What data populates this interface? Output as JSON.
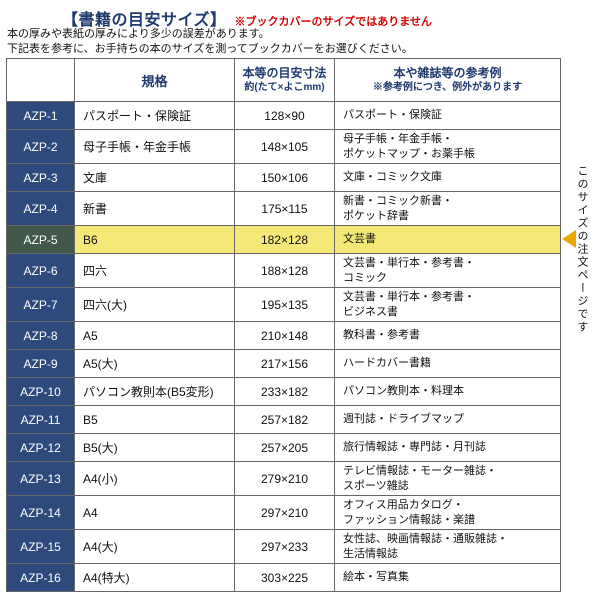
{
  "page": {
    "title": "【書籍の目安サイズ】",
    "title_warning": "※ブックカバーのサイズではありません",
    "note_line1": "本の厚みや表紙の厚みにより多少の誤差があります。",
    "note_line2": "下記表を参考に、お手持ちの本のサイズを測ってブックカバーをお選びください。"
  },
  "colors": {
    "heading_navy": "#1e3a6e",
    "code_cell_navy": "#2e4a7c",
    "selected_code_cell_green": "#41584a",
    "highlight_row_yellow": "#f4e976",
    "warning_red": "#d60000",
    "arrow_gold": "#eaa800"
  },
  "table": {
    "header": {
      "standard": "規格",
      "size_title": "本等の目安寸法",
      "size_sub": "約(たて×よこmm)",
      "examples_title": "本や雑誌等の参考例",
      "examples_sub": "※参考例につき、例外があります"
    },
    "rows": [
      {
        "code": "AZP-1",
        "standard": "パスポート・保険証",
        "size": "128×90",
        "examples": "パスポート・保険証",
        "highlight": false
      },
      {
        "code": "AZP-2",
        "standard": "母子手帳・年金手帳",
        "size": "148×105",
        "examples": "母子手帳・年金手帳・\nポケットマップ・お薬手帳",
        "highlight": false
      },
      {
        "code": "AZP-3",
        "standard": "文庫",
        "size": "150×106",
        "examples": "文庫・コミック文庫",
        "highlight": false
      },
      {
        "code": "AZP-4",
        "standard": "新書",
        "size": "175×115",
        "examples": "新書・コミック新書・\nポケット辞書",
        "highlight": false
      },
      {
        "code": "AZP-5",
        "standard": "B6",
        "size": "182×128",
        "examples": "文芸書",
        "highlight": true
      },
      {
        "code": "AZP-6",
        "standard": "四六",
        "size": "188×128",
        "examples": "文芸書・単行本・参考書・\nコミック",
        "highlight": false
      },
      {
        "code": "AZP-7",
        "standard": "四六(大)",
        "size": "195×135",
        "examples": "文芸書・単行本・参考書・\nビジネス書",
        "highlight": false
      },
      {
        "code": "AZP-8",
        "standard": "A5",
        "size": "210×148",
        "examples": "教科書・参考書",
        "highlight": false
      },
      {
        "code": "AZP-9",
        "standard": "A5(大)",
        "size": "217×156",
        "examples": "ハードカバー書籍",
        "highlight": false
      },
      {
        "code": "AZP-10",
        "standard": "パソコン教則本(B5変形)",
        "size": "233×182",
        "examples": "パソコン教則本・料理本",
        "highlight": false
      },
      {
        "code": "AZP-11",
        "standard": "B5",
        "size": "257×182",
        "examples": "週刊誌・ドライブマップ",
        "highlight": false
      },
      {
        "code": "AZP-12",
        "standard": "B5(大)",
        "size": "257×205",
        "examples": "旅行情報誌・専門誌・月刊誌",
        "highlight": false
      },
      {
        "code": "AZP-13",
        "standard": "A4(小)",
        "size": "279×210",
        "examples": "テレビ情報誌・モーター雑誌・\nスポーツ雑誌",
        "highlight": false
      },
      {
        "code": "AZP-14",
        "standard": "A4",
        "size": "297×210",
        "examples": "オフィス用品カタログ・\nファッション情報誌・楽譜",
        "highlight": false
      },
      {
        "code": "AZP-15",
        "standard": "A4(大)",
        "size": "297×233",
        "examples": "女性誌、映画情報誌・通販雑誌・\n生活情報誌",
        "highlight": false
      },
      {
        "code": "AZP-16",
        "standard": "A4(特大)",
        "size": "303×225",
        "examples": "絵本・写真集",
        "highlight": false
      }
    ]
  },
  "side": {
    "vertical_note": "このサイズの注文ページです"
  }
}
